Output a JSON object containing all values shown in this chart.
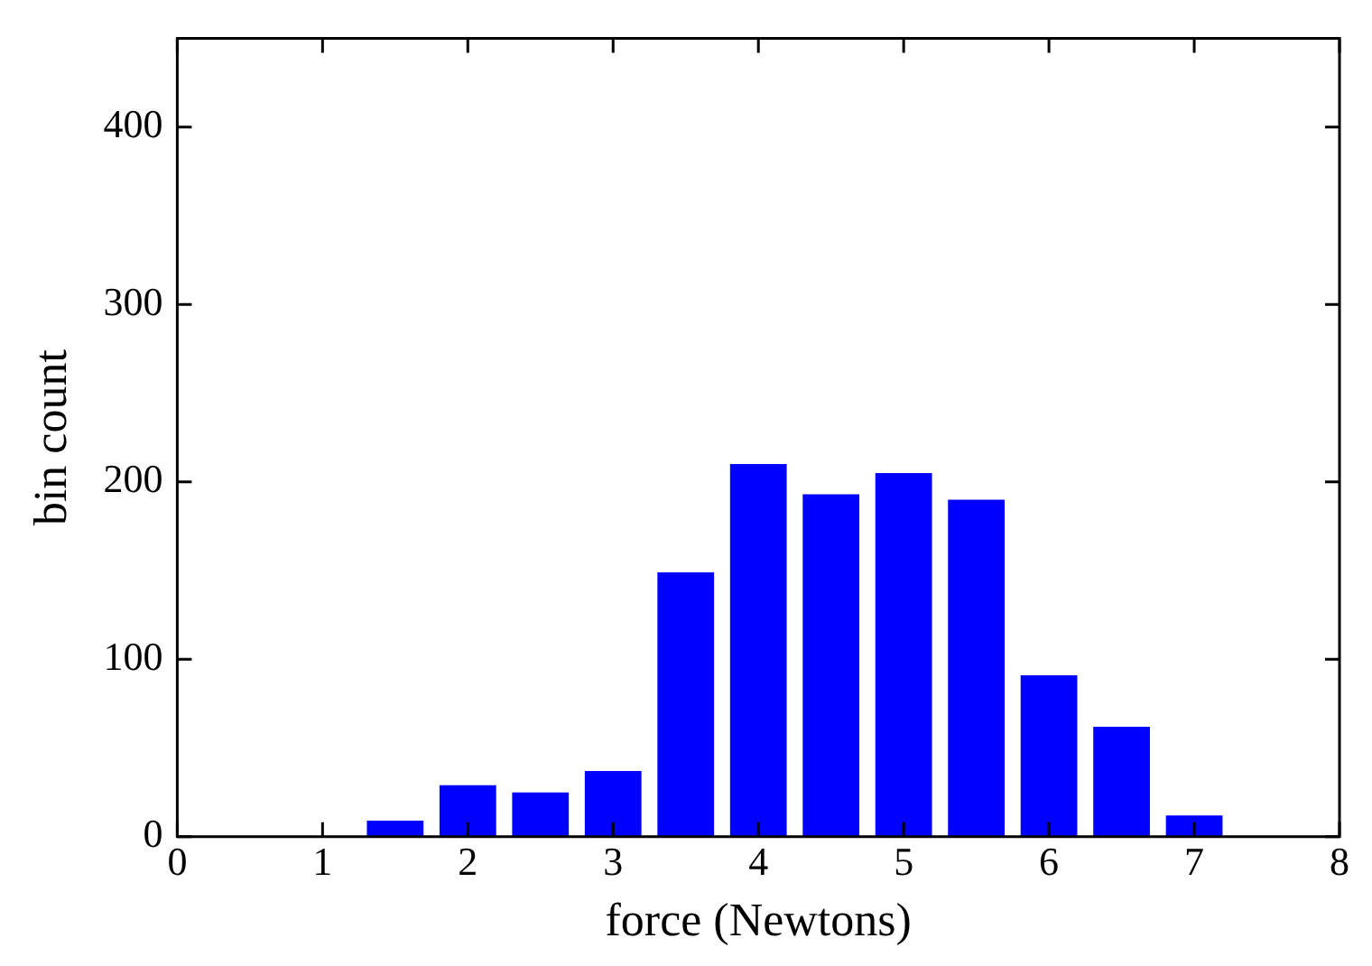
{
  "chart_data": {
    "type": "histogram",
    "xlabel": "force (Newtons)",
    "ylabel": "bin count",
    "bins": [
      1.25,
      1.75,
      2.25,
      2.75,
      3.25,
      3.75,
      4.25,
      4.75,
      5.25,
      5.75,
      6.25,
      6.75,
      7.25
    ],
    "values": [
      9,
      29,
      25,
      37,
      149,
      210,
      193,
      205,
      190,
      91,
      62,
      12
    ],
    "color": "#0000ff",
    "xlim": [
      0,
      8
    ],
    "xticks": [
      0,
      1,
      2,
      3,
      4,
      5,
      6,
      7,
      8
    ],
    "ylim": [
      0,
      450
    ],
    "yticks": [
      0,
      100,
      200,
      300,
      400
    ],
    "grid": false,
    "legend": false
  }
}
